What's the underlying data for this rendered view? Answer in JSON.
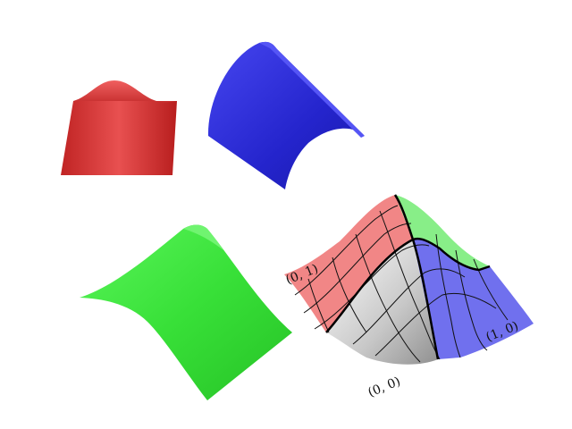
{
  "figure": {
    "colors": {
      "red_surface": "#d83a3a",
      "blue_surface": "#2a2ad6",
      "green_surface": "#3ee83e",
      "tinted_red": "#f07878",
      "tinted_blue": "#6a6aee",
      "tinted_green": "#88ee88",
      "grid": "#111111"
    },
    "corner_labels": {
      "origin": "(0, 0)",
      "left": "(0, 1)",
      "right": "(1, 0)"
    }
  }
}
